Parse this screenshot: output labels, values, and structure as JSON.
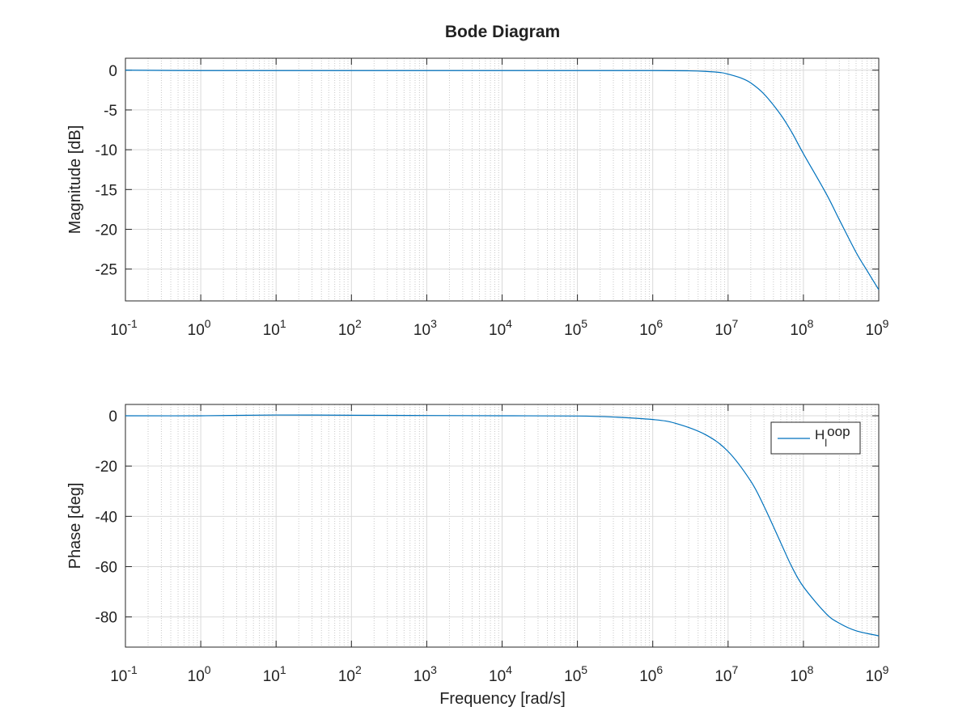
{
  "figure": {
    "title": "Bode Diagram"
  },
  "chart_data": [
    {
      "type": "line",
      "panel": "magnitude",
      "title": "Bode Diagram",
      "xlabel": "",
      "ylabel": "Magnitude [dB]",
      "xscale": "log",
      "xlim": [
        0.1,
        1000000000
      ],
      "ylim": [
        -29,
        1.5
      ],
      "grid": true,
      "minor_grid": true,
      "xtick_labels": [
        {
          "base": "10",
          "exp": "-1"
        },
        {
          "base": "10",
          "exp": "0"
        },
        {
          "base": "10",
          "exp": "1"
        },
        {
          "base": "10",
          "exp": "2"
        },
        {
          "base": "10",
          "exp": "3"
        },
        {
          "base": "10",
          "exp": "4"
        },
        {
          "base": "10",
          "exp": "5"
        },
        {
          "base": "10",
          "exp": "6"
        },
        {
          "base": "10",
          "exp": "7"
        },
        {
          "base": "10",
          "exp": "8"
        },
        {
          "base": "10",
          "exp": "9"
        }
      ],
      "yticks": [
        0,
        -5,
        -10,
        -15,
        -20,
        -25
      ],
      "series": [
        {
          "color": "#0072bd",
          "x": [
            0.1,
            1,
            10,
            100,
            1000,
            10000,
            100000,
            1000000,
            3000000,
            5000000,
            8000000,
            10000000,
            15000000,
            20000000,
            30000000,
            50000000,
            70000000,
            100000000,
            200000000,
            300000000,
            500000000,
            700000000,
            1000000000
          ],
          "y": [
            0,
            -0.05,
            -0.05,
            -0.05,
            -0.05,
            -0.05,
            -0.05,
            -0.05,
            -0.08,
            -0.15,
            -0.3,
            -0.5,
            -1.0,
            -1.6,
            -3.0,
            -5.6,
            -7.8,
            -10.5,
            -15.5,
            -18.8,
            -22.9,
            -25.2,
            -27.6
          ]
        }
      ]
    },
    {
      "type": "line",
      "panel": "phase",
      "xlabel": "Frequency [rad/s]",
      "ylabel": "Phase [deg]",
      "xscale": "log",
      "xlim": [
        0.1,
        1000000000
      ],
      "ylim": [
        -92,
        4.5
      ],
      "grid": true,
      "minor_grid": true,
      "xtick_labels": [
        {
          "base": "10",
          "exp": "-1"
        },
        {
          "base": "10",
          "exp": "0"
        },
        {
          "base": "10",
          "exp": "1"
        },
        {
          "base": "10",
          "exp": "2"
        },
        {
          "base": "10",
          "exp": "3"
        },
        {
          "base": "10",
          "exp": "4"
        },
        {
          "base": "10",
          "exp": "5"
        },
        {
          "base": "10",
          "exp": "6"
        },
        {
          "base": "10",
          "exp": "7"
        },
        {
          "base": "10",
          "exp": "8"
        },
        {
          "base": "10",
          "exp": "9"
        }
      ],
      "yticks": [
        0,
        -20,
        -40,
        -60,
        -80
      ],
      "legend": {
        "placement": "top-right",
        "label": "H",
        "label_sub": "l",
        "label_sup": "oop"
      },
      "series": [
        {
          "color": "#0072bd",
          "x": [
            0.1,
            1,
            10,
            100,
            1000,
            10000,
            100000,
            300000,
            1000000,
            2000000,
            5000000,
            10000000,
            20000000,
            30000000,
            50000000,
            70000000,
            100000000,
            200000000,
            300000000,
            500000000,
            1000000000
          ],
          "y": [
            0,
            0,
            0.3,
            0.2,
            0.1,
            0,
            -0.1,
            -0.5,
            -1.5,
            -3.0,
            -7.5,
            -14.2,
            -26.0,
            -36.0,
            -50.5,
            -60.0,
            -68.0,
            -78.7,
            -82.5,
            -85.5,
            -87.5
          ]
        }
      ]
    }
  ]
}
